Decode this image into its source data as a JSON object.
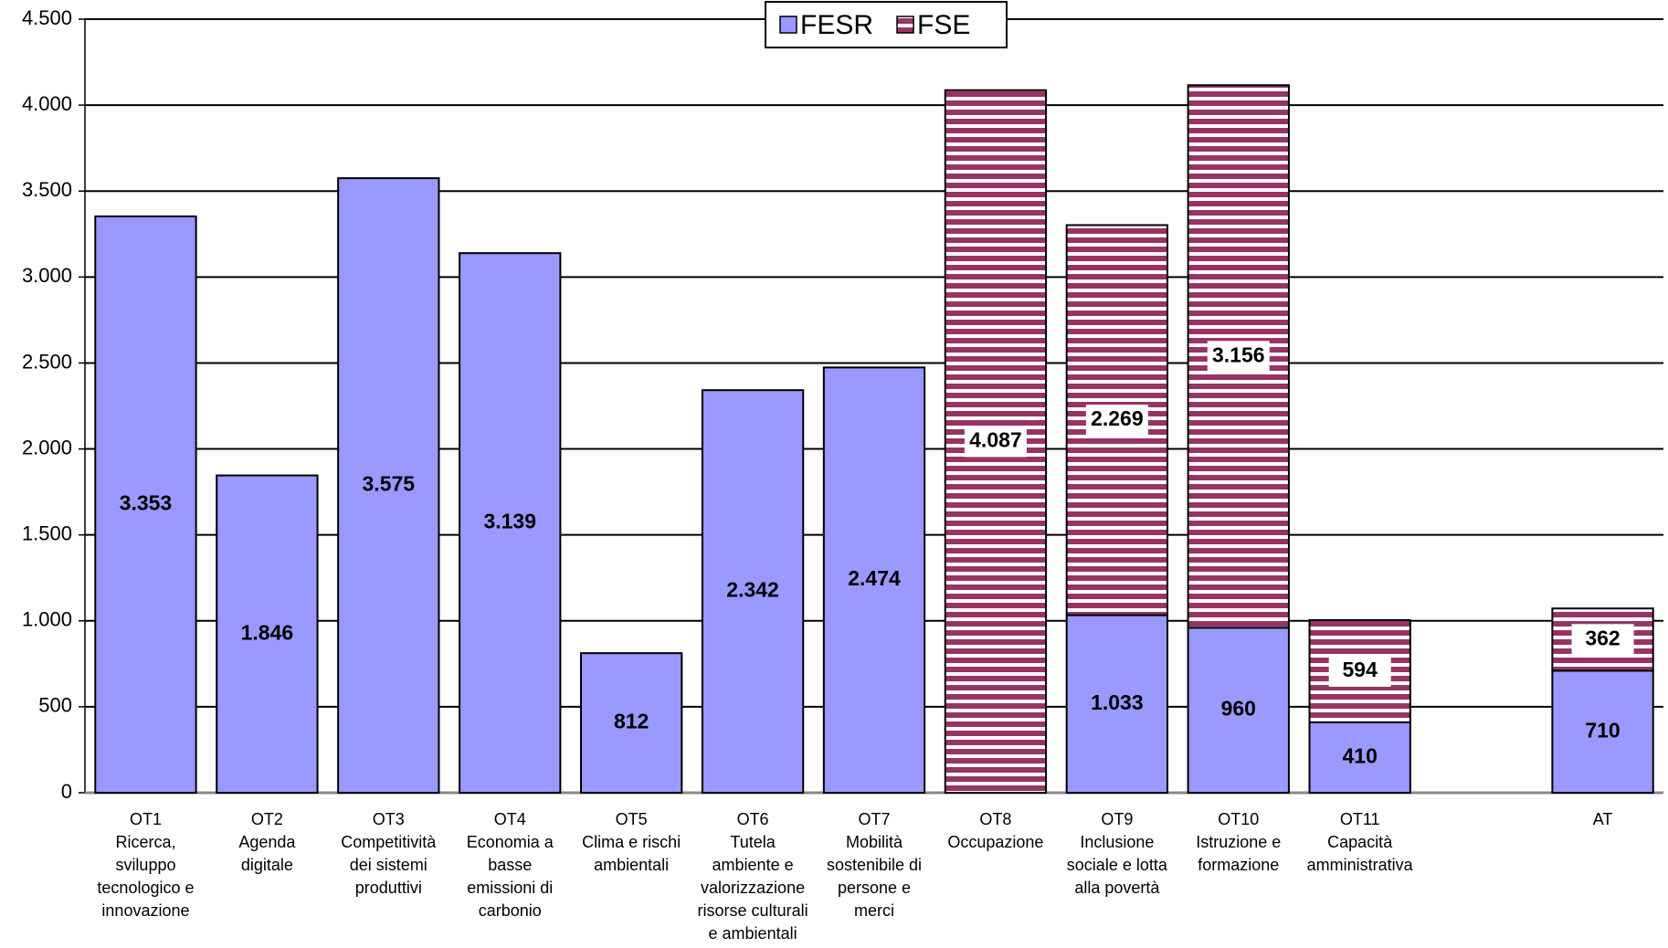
{
  "chart_data": {
    "type": "stacked_bar",
    "categories": [
      "OT1\nRicerca,\nsviluppo\ntecnologico e\ninnovazione",
      "OT2\nAgenda\ndigitale",
      "OT3\nCompetitività\ndei sistemi\nproduttivi",
      "OT4\nEconomia a\nbasse\nemissioni di\ncarbonio",
      "OT5\nClima e rischi\nambientali",
      "OT6\nTutela\nambiente e\nvalorizzazione\nrisorse culturali\ne ambientali",
      "OT7\nMobilità\nsostenibile di\npersone e\nmerci",
      "OT8\nOccupazione",
      "OT9\nInclusione\nsociale e lotta\nalla povertà",
      "OT10\nIstruzione e\nformazione",
      "OT11\nCapacità\namministrativa",
      null,
      "AT"
    ],
    "series": [
      {
        "name": "FESR",
        "color": "#9999ff",
        "values": [
          3353,
          1846,
          3575,
          3139,
          812,
          2342,
          2474,
          null,
          1033,
          960,
          410,
          null,
          710
        ],
        "value_labels": [
          "3.353",
          "1.846",
          "3.575",
          "3.139",
          "812",
          "2.342",
          "2.474",
          null,
          "1.033",
          "960",
          "410",
          null,
          "710"
        ]
      },
      {
        "name": "FSE",
        "color": "#993366",
        "values": [
          null,
          null,
          null,
          null,
          null,
          null,
          null,
          4087,
          2269,
          3156,
          594,
          null,
          362
        ],
        "value_labels": [
          null,
          null,
          null,
          null,
          null,
          null,
          null,
          "4.087",
          "2.269",
          "3.156",
          "594",
          null,
          "362"
        ]
      }
    ],
    "ylim": [
      0,
      4500
    ],
    "yticks": [
      0,
      500,
      {
        "value": 1000,
        "label": "1.000"
      },
      {
        "value": 1500,
        "label": "1.500"
      },
      {
        "value": 2000,
        "label": "2.000"
      },
      {
        "value": 2500,
        "label": "2.500"
      },
      {
        "value": 3000,
        "label": "3.000"
      },
      {
        "value": 3500,
        "label": "3.500"
      },
      {
        "value": 4000,
        "label": "4.000"
      },
      {
        "value": 4500,
        "label": "4.500"
      }
    ],
    "grid": true,
    "legend": "top"
  }
}
